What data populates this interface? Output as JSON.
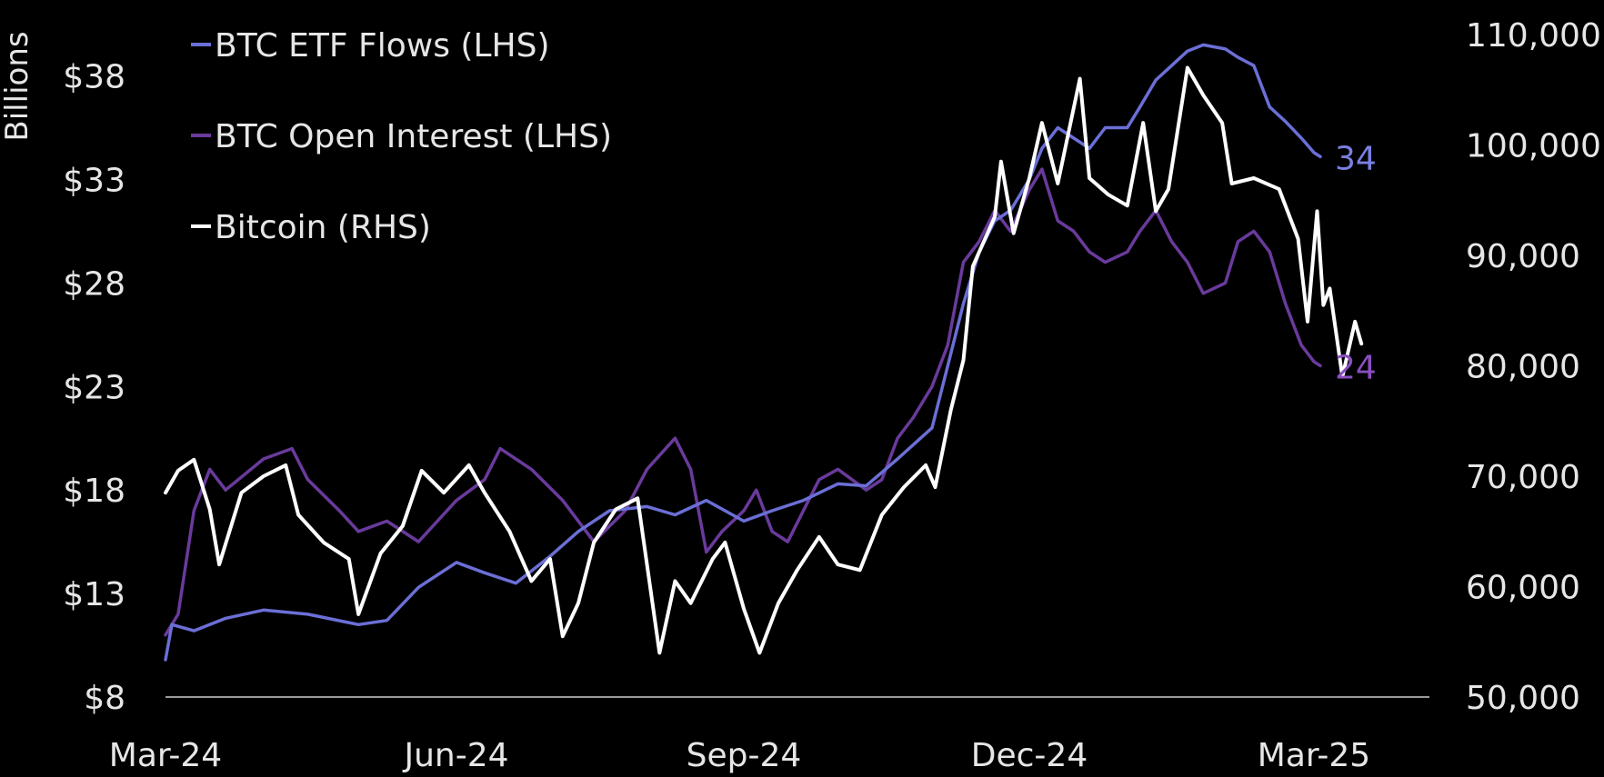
{
  "chart_data": {
    "type": "line",
    "title": "",
    "xlabel": "",
    "ylabel_left": "Billions",
    "ylabel_right": "",
    "x_ticks": [
      "Mar-24",
      "Jun-24",
      "Sep-24",
      "Dec-24",
      "Mar-25"
    ],
    "y_left_ticks": [
      "$8",
      "$13",
      "$18",
      "$23",
      "$28",
      "$33",
      "$38"
    ],
    "y_left_range": [
      8,
      40
    ],
    "y_right_ticks": [
      "50,000",
      "60,000",
      "70,000",
      "80,000",
      "90,000",
      "100,000",
      "110,000"
    ],
    "y_right_range": [
      50000,
      110000
    ],
    "grid": false,
    "legend_position": "top-left",
    "series": [
      {
        "name": "BTC ETF Flows (LHS)",
        "axis": "left",
        "color": "#6b6fd6",
        "end_label": "34",
        "points": [
          [
            "2024-03-01",
            9.8
          ],
          [
            "2024-03-03",
            11.5
          ],
          [
            "2024-03-10",
            11.2
          ],
          [
            "2024-03-20",
            11.8
          ],
          [
            "2024-04-01",
            12.2
          ],
          [
            "2024-04-15",
            12.0
          ],
          [
            "2024-05-01",
            11.5
          ],
          [
            "2024-05-10",
            11.7
          ],
          [
            "2024-05-20",
            13.3
          ],
          [
            "2024-06-01",
            14.5
          ],
          [
            "2024-06-10",
            14.0
          ],
          [
            "2024-06-20",
            13.5
          ],
          [
            "2024-07-01",
            14.8
          ],
          [
            "2024-07-10",
            16.0
          ],
          [
            "2024-07-20",
            17.0
          ],
          [
            "2024-08-01",
            17.2
          ],
          [
            "2024-08-10",
            16.8
          ],
          [
            "2024-08-20",
            17.5
          ],
          [
            "2024-09-01",
            16.5
          ],
          [
            "2024-09-10",
            17.0
          ],
          [
            "2024-09-20",
            17.5
          ],
          [
            "2024-10-01",
            18.3
          ],
          [
            "2024-10-10",
            18.2
          ],
          [
            "2024-10-20",
            19.5
          ],
          [
            "2024-10-31",
            21.0
          ],
          [
            "2024-11-05",
            24.0
          ],
          [
            "2024-11-10",
            27.0
          ],
          [
            "2024-11-15",
            29.5
          ],
          [
            "2024-11-20",
            31.0
          ],
          [
            "2024-11-25",
            31.5
          ],
          [
            "2024-12-01",
            33.0
          ],
          [
            "2024-12-05",
            34.5
          ],
          [
            "2024-12-10",
            35.5
          ],
          [
            "2024-12-15",
            35.0
          ],
          [
            "2024-12-20",
            34.5
          ],
          [
            "2024-12-25",
            35.5
          ],
          [
            "2025-01-01",
            35.5
          ],
          [
            "2025-01-05",
            36.5
          ],
          [
            "2025-01-10",
            37.8
          ],
          [
            "2025-01-15",
            38.5
          ],
          [
            "2025-01-20",
            39.2
          ],
          [
            "2025-01-25",
            39.5
          ],
          [
            "2025-02-01",
            39.3
          ],
          [
            "2025-02-05",
            38.9
          ],
          [
            "2025-02-10",
            38.5
          ],
          [
            "2025-02-15",
            36.5
          ],
          [
            "2025-02-20",
            35.8
          ],
          [
            "2025-02-25",
            35.0
          ],
          [
            "2025-03-01",
            34.3
          ],
          [
            "2025-03-03",
            34.1
          ]
        ]
      },
      {
        "name": "BTC Open Interest (LHS)",
        "axis": "left",
        "color": "#6a3a9c",
        "end_label": "24",
        "points": [
          [
            "2024-03-01",
            11.0
          ],
          [
            "2024-03-05",
            12.0
          ],
          [
            "2024-03-10",
            17.0
          ],
          [
            "2024-03-15",
            19.0
          ],
          [
            "2024-03-20",
            18.0
          ],
          [
            "2024-04-01",
            19.5
          ],
          [
            "2024-04-10",
            20.0
          ],
          [
            "2024-04-15",
            18.5
          ],
          [
            "2024-04-25",
            17.0
          ],
          [
            "2024-05-01",
            16.0
          ],
          [
            "2024-05-10",
            16.5
          ],
          [
            "2024-05-20",
            15.5
          ],
          [
            "2024-06-01",
            17.5
          ],
          [
            "2024-06-10",
            18.5
          ],
          [
            "2024-06-15",
            20.0
          ],
          [
            "2024-06-25",
            19.0
          ],
          [
            "2024-07-05",
            17.5
          ],
          [
            "2024-07-10",
            16.5
          ],
          [
            "2024-07-15",
            15.5
          ],
          [
            "2024-07-25",
            17.0
          ],
          [
            "2024-08-01",
            19.0
          ],
          [
            "2024-08-10",
            20.5
          ],
          [
            "2024-08-15",
            19.0
          ],
          [
            "2024-08-20",
            15.0
          ],
          [
            "2024-08-25",
            16.0
          ],
          [
            "2024-09-01",
            17.0
          ],
          [
            "2024-09-05",
            18.0
          ],
          [
            "2024-09-10",
            16.0
          ],
          [
            "2024-09-15",
            15.5
          ],
          [
            "2024-09-25",
            18.5
          ],
          [
            "2024-10-01",
            19.0
          ],
          [
            "2024-10-10",
            18.0
          ],
          [
            "2024-10-15",
            18.5
          ],
          [
            "2024-10-20",
            20.5
          ],
          [
            "2024-10-25",
            21.5
          ],
          [
            "2024-10-31",
            23.0
          ],
          [
            "2024-11-05",
            25.0
          ],
          [
            "2024-11-10",
            29.0
          ],
          [
            "2024-11-15",
            30.0
          ],
          [
            "2024-11-20",
            31.5
          ],
          [
            "2024-11-25",
            30.5
          ],
          [
            "2024-12-01",
            32.5
          ],
          [
            "2024-12-05",
            33.5
          ],
          [
            "2024-12-10",
            31.0
          ],
          [
            "2024-12-15",
            30.5
          ],
          [
            "2024-12-20",
            29.5
          ],
          [
            "2024-12-25",
            29.0
          ],
          [
            "2025-01-01",
            29.5
          ],
          [
            "2025-01-05",
            30.5
          ],
          [
            "2025-01-10",
            31.5
          ],
          [
            "2025-01-15",
            30.0
          ],
          [
            "2025-01-20",
            29.0
          ],
          [
            "2025-01-25",
            27.5
          ],
          [
            "2025-02-01",
            28.0
          ],
          [
            "2025-02-05",
            30.0
          ],
          [
            "2025-02-10",
            30.5
          ],
          [
            "2025-02-15",
            29.5
          ],
          [
            "2025-02-20",
            27.0
          ],
          [
            "2025-02-25",
            25.0
          ],
          [
            "2025-03-01",
            24.2
          ],
          [
            "2025-03-03",
            24.0
          ]
        ]
      },
      {
        "name": "Bitcoin (RHS)",
        "axis": "right",
        "color": "#ffffff",
        "points": [
          [
            "2024-03-01",
            68500
          ],
          [
            "2024-03-05",
            70500
          ],
          [
            "2024-03-10",
            71500
          ],
          [
            "2024-03-15",
            67000
          ],
          [
            "2024-03-18",
            62000
          ],
          [
            "2024-03-25",
            68500
          ],
          [
            "2024-04-01",
            70000
          ],
          [
            "2024-04-08",
            71000
          ],
          [
            "2024-04-12",
            66500
          ],
          [
            "2024-04-20",
            64000
          ],
          [
            "2024-04-28",
            62500
          ],
          [
            "2024-05-01",
            57500
          ],
          [
            "2024-05-08",
            63000
          ],
          [
            "2024-05-15",
            65500
          ],
          [
            "2024-05-21",
            70500
          ],
          [
            "2024-05-28",
            68500
          ],
          [
            "2024-06-05",
            71000
          ],
          [
            "2024-06-10",
            68500
          ],
          [
            "2024-06-18",
            65000
          ],
          [
            "2024-06-25",
            60500
          ],
          [
            "2024-07-01",
            62500
          ],
          [
            "2024-07-05",
            55500
          ],
          [
            "2024-07-10",
            58500
          ],
          [
            "2024-07-15",
            64000
          ],
          [
            "2024-07-22",
            67000
          ],
          [
            "2024-07-29",
            68000
          ],
          [
            "2024-08-05",
            54000
          ],
          [
            "2024-08-10",
            60500
          ],
          [
            "2024-08-15",
            58500
          ],
          [
            "2024-08-22",
            62500
          ],
          [
            "2024-08-26",
            64000
          ],
          [
            "2024-09-01",
            58000
          ],
          [
            "2024-09-06",
            54000
          ],
          [
            "2024-09-12",
            58500
          ],
          [
            "2024-09-18",
            61500
          ],
          [
            "2024-09-25",
            64500
          ],
          [
            "2024-10-01",
            62000
          ],
          [
            "2024-10-08",
            61500
          ],
          [
            "2024-10-15",
            66500
          ],
          [
            "2024-10-22",
            69000
          ],
          [
            "2024-10-29",
            71000
          ],
          [
            "2024-11-01",
            69000
          ],
          [
            "2024-11-06",
            76000
          ],
          [
            "2024-11-10",
            80500
          ],
          [
            "2024-11-13",
            89000
          ],
          [
            "2024-11-20",
            93500
          ],
          [
            "2024-11-22",
            98500
          ],
          [
            "2024-11-26",
            92000
          ],
          [
            "2024-12-01",
            97000
          ],
          [
            "2024-12-05",
            102000
          ],
          [
            "2024-12-10",
            96500
          ],
          [
            "2024-12-17",
            106000
          ],
          [
            "2024-12-20",
            97000
          ],
          [
            "2024-12-26",
            95500
          ],
          [
            "2025-01-01",
            94500
          ],
          [
            "2025-01-06",
            102000
          ],
          [
            "2025-01-10",
            94000
          ],
          [
            "2025-01-14",
            96000
          ],
          [
            "2025-01-20",
            107000
          ],
          [
            "2025-01-25",
            104500
          ],
          [
            "2025-01-31",
            102000
          ],
          [
            "2025-02-03",
            96500
          ],
          [
            "2025-02-10",
            97000
          ],
          [
            "2025-02-18",
            96000
          ],
          [
            "2025-02-24",
            91500
          ],
          [
            "2025-02-27",
            84000
          ],
          [
            "2025-03-02",
            94000
          ],
          [
            "2025-03-04",
            85500
          ],
          [
            "2025-03-06",
            87000
          ],
          [
            "2025-03-10",
            79000
          ],
          [
            "2025-03-14",
            84000
          ],
          [
            "2025-03-16",
            82000
          ]
        ]
      }
    ]
  }
}
